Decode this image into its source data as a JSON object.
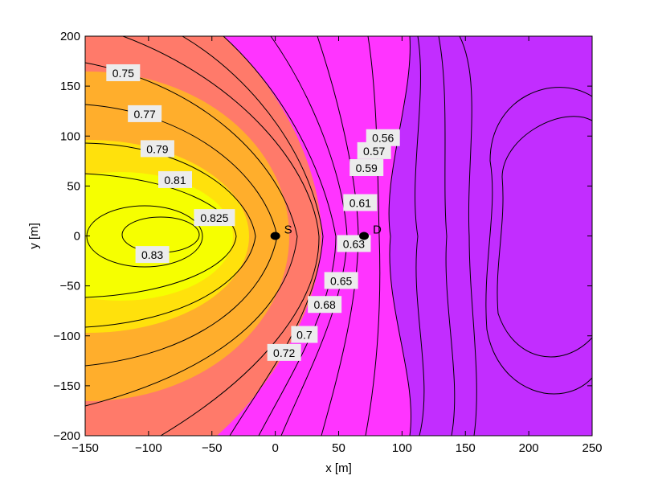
{
  "chart_data": {
    "type": "contour",
    "xlabel": "x [m]",
    "ylabel": "y [m]",
    "xlim": [
      -150,
      250
    ],
    "ylim": [
      -200,
      200
    ],
    "xticks": [
      -150,
      -100,
      -50,
      0,
      50,
      100,
      150,
      200,
      250
    ],
    "yticks": [
      -200,
      -150,
      -100,
      -50,
      0,
      50,
      100,
      150,
      200
    ],
    "xtick_labels": [
      "−150",
      "−100",
      "−50",
      "0",
      "50",
      "100",
      "150",
      "200",
      "250"
    ],
    "ytick_labels": [
      "−200",
      "−150",
      "−100",
      "−50",
      "0",
      "50",
      "100",
      "150",
      "200"
    ],
    "grid": false,
    "colormap": [
      "#c22dff",
      "#ff34ff",
      "#ff7a6a",
      "#ffae2c",
      "#ffe10c",
      "#f6ff00"
    ],
    "contour_levels": [
      0.56,
      0.57,
      0.59,
      0.61,
      0.63,
      0.65,
      0.68,
      0.7,
      0.72,
      0.75,
      0.77,
      0.79,
      0.81,
      0.825,
      0.83
    ],
    "contour_labels": [
      {
        "text": "0.75",
        "x": -120,
        "y": 163
      },
      {
        "text": "0.77",
        "x": -103,
        "y": 122
      },
      {
        "text": "0.79",
        "x": -93,
        "y": 87
      },
      {
        "text": "0.81",
        "x": -79,
        "y": 56
      },
      {
        "text": "0.825",
        "x": -48,
        "y": 18
      },
      {
        "text": "0.83",
        "x": -97,
        "y": -19
      },
      {
        "text": "0.72",
        "x": 7,
        "y": -117
      },
      {
        "text": "0.7",
        "x": 23,
        "y": -99
      },
      {
        "text": "0.68",
        "x": 39,
        "y": -69
      },
      {
        "text": "0.65",
        "x": 52,
        "y": -45
      },
      {
        "text": "0.63",
        "x": 62,
        "y": -8
      },
      {
        "text": "0.61",
        "x": 67,
        "y": 33
      },
      {
        "text": "0.59",
        "x": 72,
        "y": 68
      },
      {
        "text": "0.57",
        "x": 78,
        "y": 85
      },
      {
        "text": "0.56",
        "x": 85,
        "y": 98
      }
    ],
    "markers": [
      {
        "label": "S",
        "x": 0,
        "y": 0
      },
      {
        "label": "D",
        "x": 70,
        "y": 0
      }
    ]
  }
}
